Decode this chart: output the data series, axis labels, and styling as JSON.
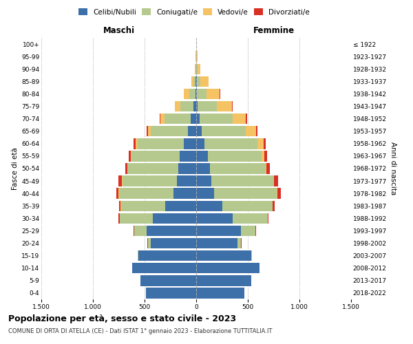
{
  "age_groups": [
    "0-4",
    "5-9",
    "10-14",
    "15-19",
    "20-24",
    "25-29",
    "30-34",
    "35-39",
    "40-44",
    "45-49",
    "50-54",
    "55-59",
    "60-64",
    "65-69",
    "70-74",
    "75-79",
    "80-84",
    "85-89",
    "90-94",
    "95-99",
    "100+"
  ],
  "birth_years": [
    "2018-2022",
    "2013-2017",
    "2008-2012",
    "2003-2007",
    "1998-2002",
    "1993-1997",
    "1988-1992",
    "1983-1987",
    "1978-1982",
    "1973-1977",
    "1968-1972",
    "1963-1967",
    "1958-1962",
    "1953-1957",
    "1948-1952",
    "1943-1947",
    "1938-1942",
    "1933-1937",
    "1928-1932",
    "1923-1927",
    "≤ 1922"
  ],
  "maschi": {
    "celibi": [
      490,
      540,
      620,
      560,
      440,
      480,
      420,
      300,
      220,
      185,
      175,
      160,
      120,
      80,
      55,
      25,
      10,
      5,
      3,
      1,
      0
    ],
    "coniugati": [
      0,
      0,
      0,
      10,
      30,
      120,
      320,
      430,
      530,
      530,
      490,
      470,
      450,
      360,
      250,
      130,
      60,
      20,
      5,
      2,
      0
    ],
    "vedovi": [
      0,
      0,
      0,
      0,
      0,
      2,
      2,
      2,
      3,
      5,
      5,
      5,
      20,
      30,
      40,
      50,
      50,
      25,
      8,
      2,
      0
    ],
    "divorziati": [
      0,
      0,
      0,
      0,
      2,
      5,
      10,
      15,
      20,
      35,
      20,
      20,
      15,
      10,
      10,
      5,
      2,
      0,
      0,
      0,
      0
    ]
  },
  "femmine": {
    "nubili": [
      465,
      530,
      610,
      530,
      400,
      430,
      350,
      250,
      170,
      145,
      130,
      110,
      80,
      50,
      30,
      15,
      8,
      5,
      2,
      1,
      0
    ],
    "coniugate": [
      0,
      0,
      0,
      8,
      35,
      140,
      340,
      490,
      610,
      600,
      540,
      520,
      510,
      430,
      320,
      185,
      90,
      35,
      10,
      2,
      0
    ],
    "vedove": [
      0,
      0,
      0,
      0,
      0,
      2,
      2,
      3,
      5,
      8,
      10,
      30,
      60,
      100,
      130,
      145,
      130,
      80,
      30,
      8,
      2
    ],
    "divorziate": [
      0,
      0,
      0,
      0,
      2,
      5,
      8,
      20,
      35,
      40,
      30,
      25,
      20,
      15,
      12,
      8,
      5,
      2,
      0,
      0,
      0
    ]
  },
  "colors": {
    "celibi_nubili": "#3d6fa8",
    "coniugati": "#b5c98e",
    "vedovi": "#f5c264",
    "divorziati": "#d93025"
  },
  "xlim": 1500,
  "title": "Popolazione per età, sesso e stato civile - 2023",
  "subtitle": "COMUNE DI ORTA DI ATELLA (CE) - Dati ISTAT 1° gennaio 2023 - Elaborazione TUTTITALIA.IT",
  "ylabel_left": "Fasce di età",
  "ylabel_right": "Anni di nascita",
  "xlabel_maschi": "Maschi",
  "xlabel_femmine": "Femmine",
  "background_color": "#ffffff",
  "grid_color": "#cccccc"
}
